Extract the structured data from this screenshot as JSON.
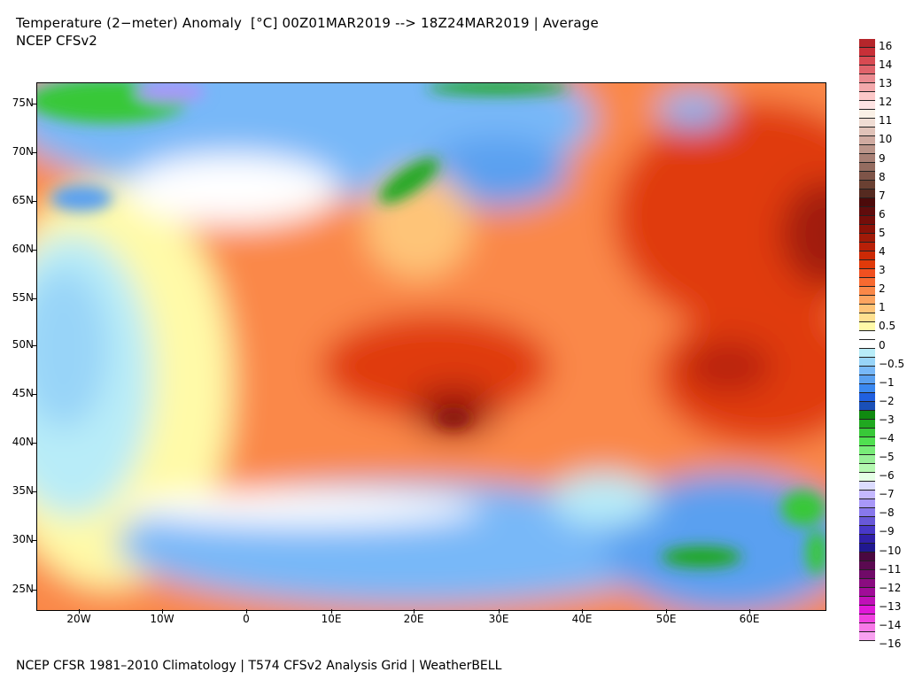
{
  "header": {
    "title": "Temperature (2−meter) Anomaly  [°C] 00Z01MAR2019 --> 18Z24MAR2019 | Average",
    "subtitle": "NCEP CFSv2"
  },
  "footer": "NCEP CFSR 1981–2010 Climatology | T574 CFSv2 Analysis Grid | WeatherBELL",
  "axes": {
    "lat_labels": [
      "75N",
      "70N",
      "65N",
      "60N",
      "55N",
      "50N",
      "45N",
      "40N",
      "35N",
      "30N",
      "25N"
    ],
    "lon_labels": [
      "20W",
      "10W",
      "0",
      "10E",
      "20E",
      "30E",
      "40E",
      "50E",
      "60E"
    ]
  },
  "colorbar": {
    "labels": [
      "16",
      "14",
      "13",
      "12",
      "11",
      "10",
      "9",
      "8",
      "7",
      "6",
      "5",
      "4",
      "3",
      "2",
      "1",
      "0.5",
      "0",
      "−0.5",
      "−1",
      "−2",
      "−3",
      "−4",
      "−5",
      "−6",
      "−7",
      "−8",
      "−9",
      "−10",
      "−11",
      "−12",
      "−13",
      "−14",
      "−16"
    ],
    "colors": [
      "#b5262b",
      "#c83038",
      "#d84a52",
      "#e0636b",
      "#ea8a90",
      "#f3a8ab",
      "#fcc8c8",
      "#fde3e3",
      "#faf0e6",
      "#efdcd3",
      "#e0c2b8",
      "#cfaaa0",
      "#bb958a",
      "#a88075",
      "#946c60",
      "#7e5448",
      "#6a4032",
      "#552a20",
      "#4c0a0a",
      "#600c0c",
      "#740e0a",
      "#8a1208",
      "#a01a08",
      "#b82008",
      "#cc2a06",
      "#e03a0a",
      "#f05020",
      "#f86a30",
      "#fa8848",
      "#fca460",
      "#fec478",
      "#fee090",
      "#fffaa8",
      "#ffffff",
      "#ffffff",
      "#b8ecf8",
      "#98d4f8",
      "#78b8f8",
      "#5aa0f0",
      "#3a88f0",
      "#2060e0",
      "#1a50b8",
      "#108a10",
      "#20a820",
      "#38c838",
      "#50e050",
      "#78ec78",
      "#98f098",
      "#b4f8b0",
      "#e6ffe6",
      "#dcdcff",
      "#c4b8ff",
      "#a898f8",
      "#8878ec",
      "#6858d8",
      "#4838c8",
      "#3020a8",
      "#201890",
      "#4a0840",
      "#5a0a50",
      "#700a68",
      "#8a0c80",
      "#a00c98",
      "#c010b8",
      "#e018d8",
      "#f040e0",
      "#f878e8",
      "#f8a0f0"
    ]
  }
}
